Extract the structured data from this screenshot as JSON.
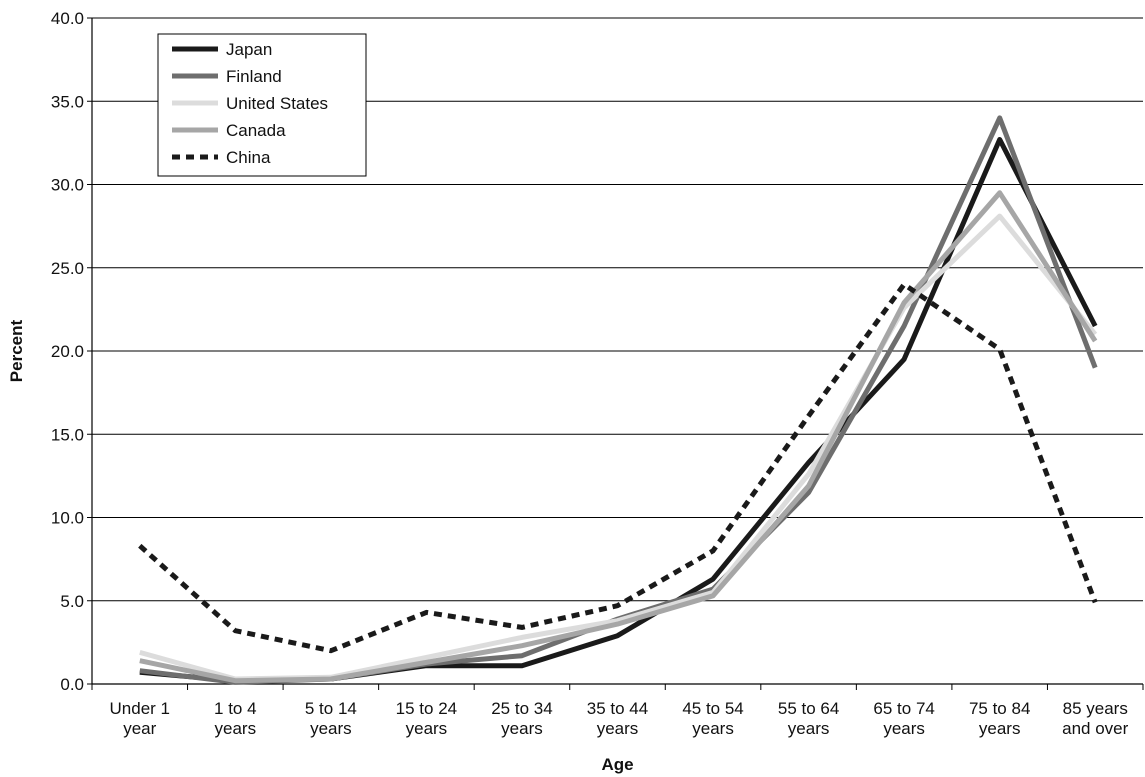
{
  "chart_data": {
    "type": "line",
    "title": "",
    "xlabel": "Age",
    "ylabel": "Percent",
    "ylim": [
      0,
      40
    ],
    "yticks": [
      "0.0",
      "5.0",
      "10.0",
      "15.0",
      "20.0",
      "25.0",
      "30.0",
      "35.0",
      "40.0"
    ],
    "grid": true,
    "legend": "top-left",
    "categories": [
      [
        "Under 1",
        "year"
      ],
      [
        "1 to 4",
        "years"
      ],
      [
        "5 to 14",
        "years"
      ],
      [
        "15 to 24",
        "years"
      ],
      [
        "25 to 34",
        "years"
      ],
      [
        "35 to 44",
        "years"
      ],
      [
        "45 to 54",
        "years"
      ],
      [
        "55 to 64",
        "years"
      ],
      [
        "65 to 74",
        "years"
      ],
      [
        "75 to 84",
        "years"
      ],
      [
        "85 years",
        "and over"
      ]
    ],
    "series": [
      {
        "name": "Japan",
        "color": "#1a1a1a",
        "dash": "solid",
        "values": [
          0.7,
          0.2,
          0.3,
          1.1,
          1.1,
          2.9,
          6.3,
          13.3,
          19.5,
          32.7,
          21.5
        ]
      },
      {
        "name": "Finland",
        "color": "#6e6e6e",
        "dash": "solid",
        "values": [
          0.8,
          0.1,
          0.3,
          1.2,
          1.7,
          3.9,
          5.7,
          11.5,
          21.5,
          34.0,
          19.0
        ]
      },
      {
        "name": "United States",
        "color": "#dcdcdc",
        "dash": "solid",
        "values": [
          1.9,
          0.3,
          0.4,
          1.6,
          2.8,
          3.8,
          5.5,
          12.6,
          22.6,
          28.1,
          21.0
        ]
      },
      {
        "name": "Canada",
        "color": "#a6a6a6",
        "dash": "solid",
        "values": [
          1.4,
          0.2,
          0.3,
          1.3,
          2.3,
          3.6,
          5.3,
          11.9,
          22.9,
          29.5,
          20.6
        ]
      },
      {
        "name": "China",
        "color": "#1a1a1a",
        "dash": "dotted",
        "values": [
          8.3,
          3.2,
          2.0,
          4.3,
          3.4,
          4.7,
          8.0,
          16.1,
          24.0,
          20.1,
          4.9
        ]
      }
    ]
  }
}
